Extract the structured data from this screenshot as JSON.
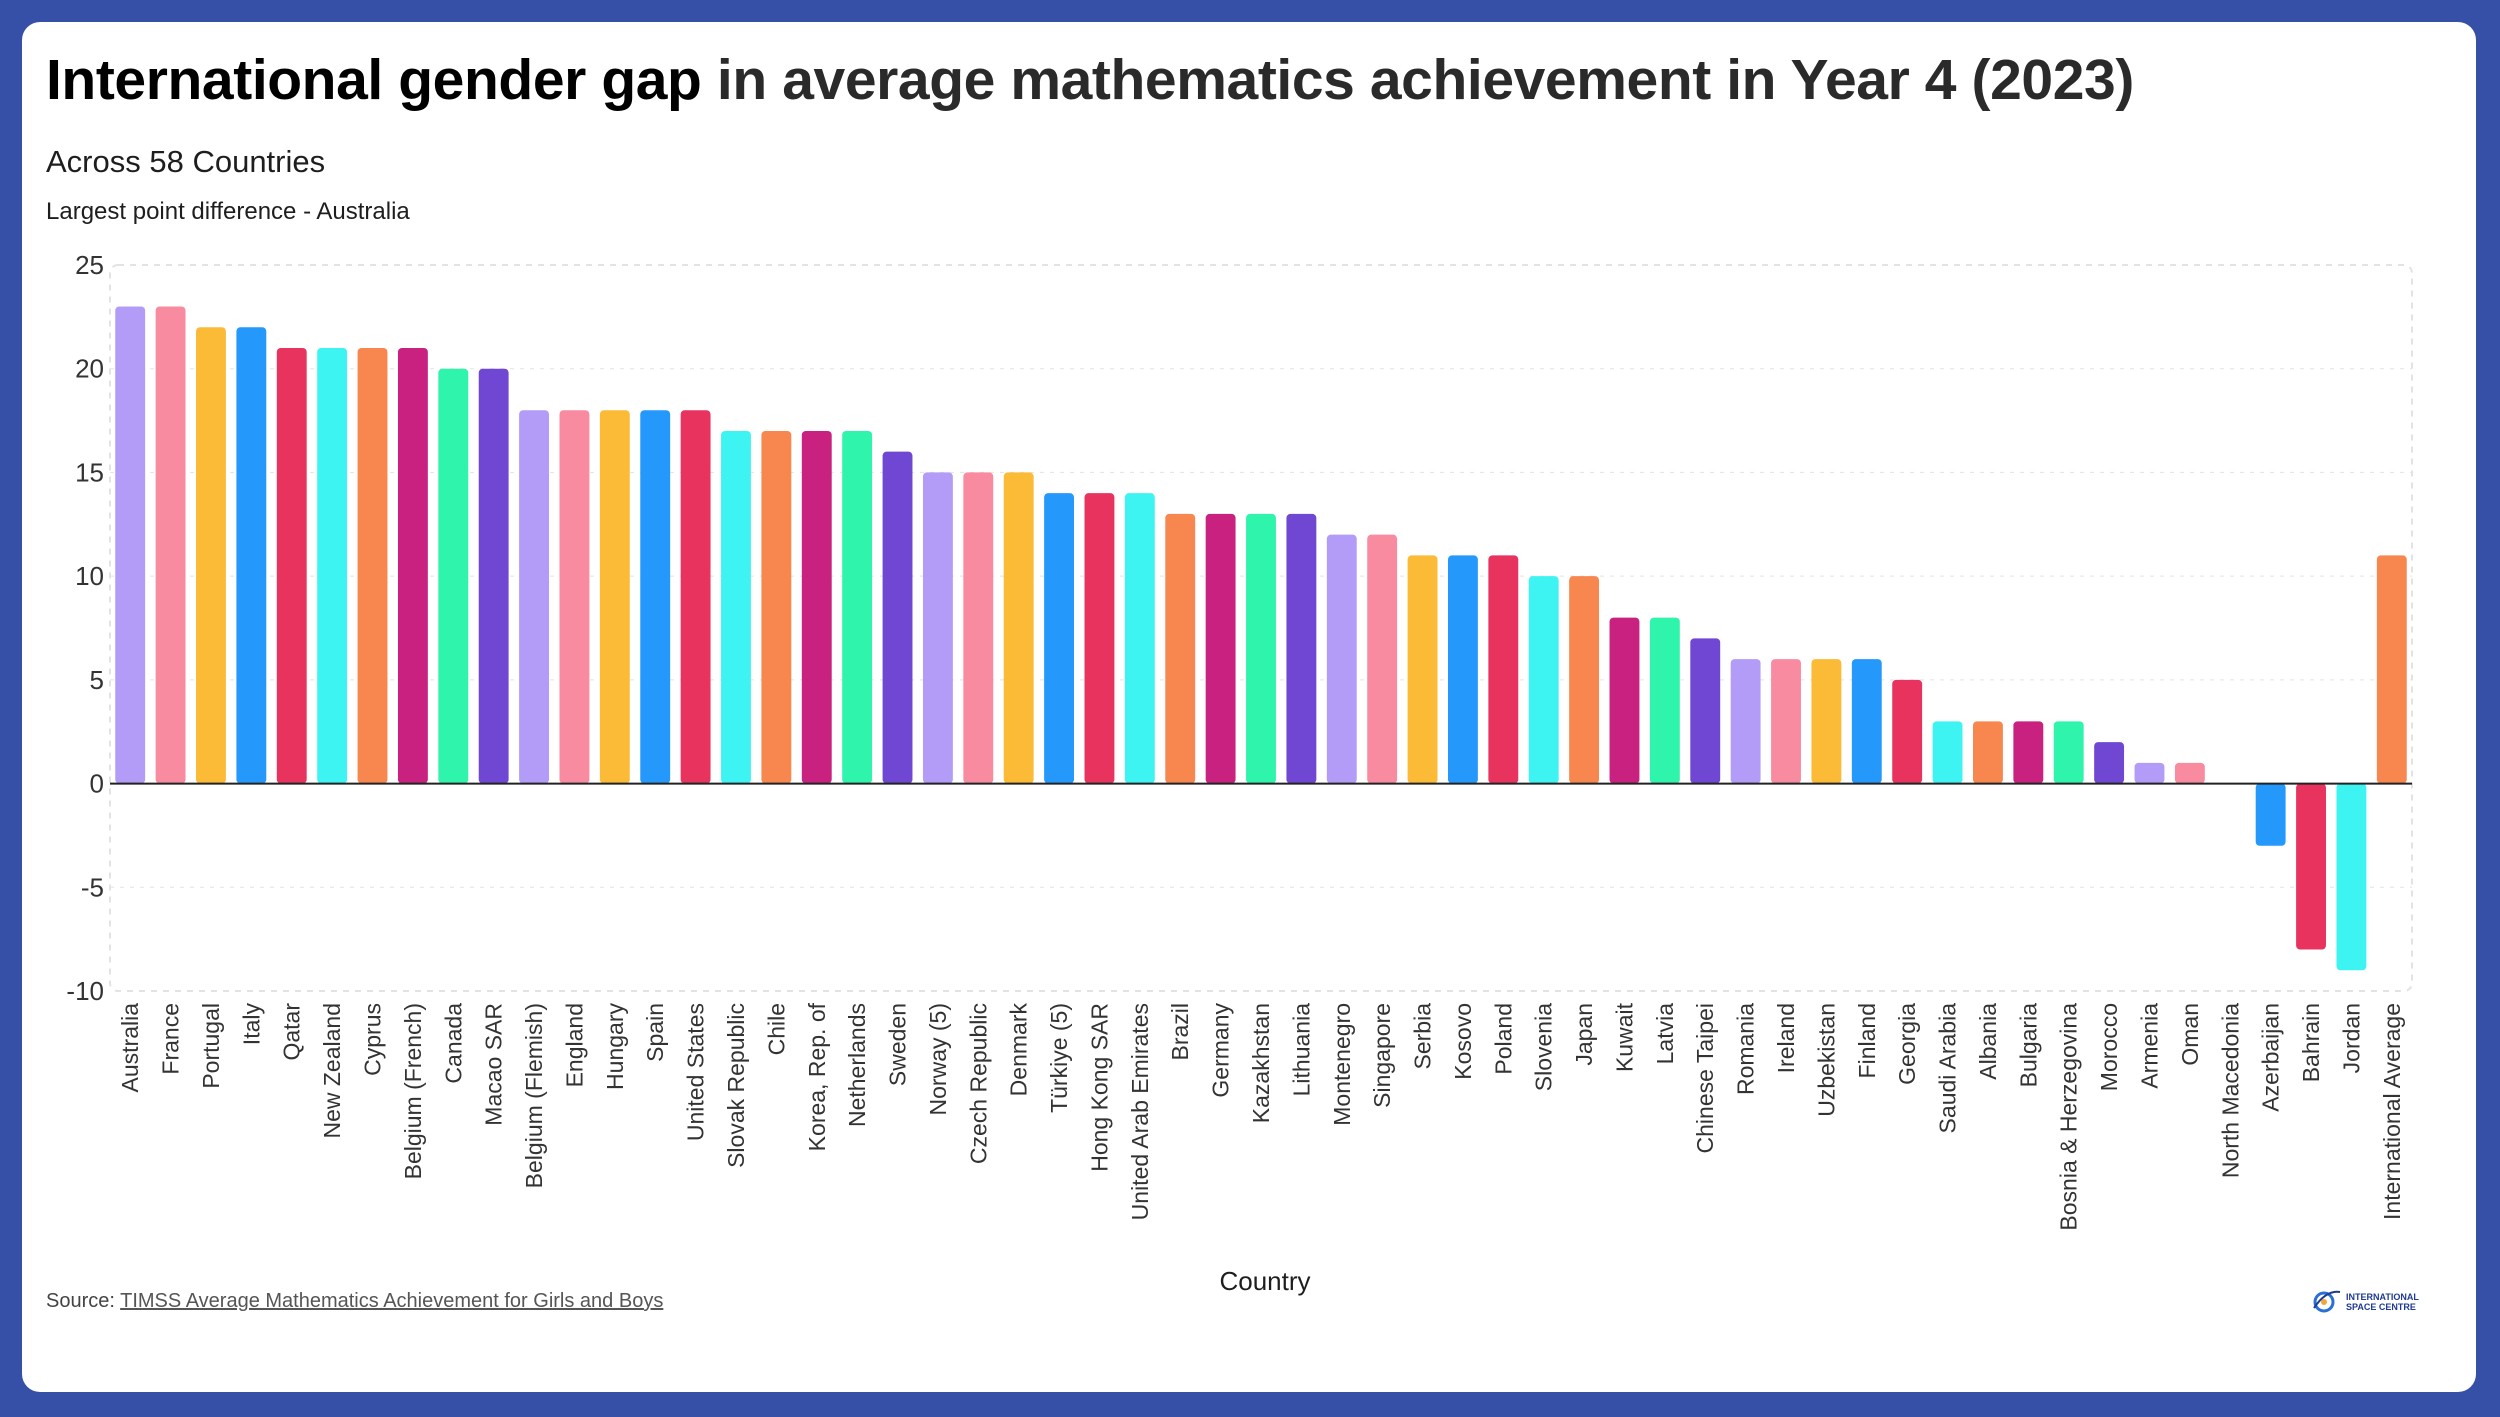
{
  "title_bold": "International gender gap",
  "title_rest": " in average mathematics achievement in Year 4 (2023)",
  "subtitle": "Across 58 Countries",
  "note": "Largest point difference - Australia",
  "source_prefix": "Source: ",
  "source_link_text": "TIMSS Average Mathematics Achievement for Girls and Boys",
  "logo_text_line1": "INTERNATIONAL",
  "logo_text_line2": "SPACE CENTRE",
  "colors": {
    "palette": [
      "#b39cf8",
      "#f98ba0",
      "#fbbb37",
      "#2599fb",
      "#e8335f",
      "#3ef4f2",
      "#f7874f",
      "#c8217f",
      "#2ff4ab",
      "#7047d2"
    ],
    "frame": "#3650a8",
    "axis": "#222222",
    "grid": "#e3e3e3"
  },
  "chart_data": {
    "type": "bar",
    "title": "International gender gap in average mathematics achievement in Year 4 (2023)",
    "xlabel": "Country",
    "ylabel": "",
    "ylim": [
      -10,
      25
    ],
    "yticks": [
      25,
      20,
      15,
      10,
      5,
      0,
      -5,
      -10
    ],
    "categories": [
      "Australia",
      "France",
      "Portugal",
      "Italy",
      "Qatar",
      "New Zealand",
      "Cyprus",
      "Belgium (French)",
      "Canada",
      "Macao SAR",
      "Belgium (Flemish)",
      "England",
      "Hungary",
      "Spain",
      "United States",
      "Slovak Republic",
      "Chile",
      "Korea, Rep. of",
      "Netherlands",
      "Sweden",
      "Norway (5)",
      "Czech Republic",
      "Denmark",
      "Türkiye (5)",
      "Hong Kong SAR",
      "United Arab Emirates",
      "Brazil",
      "Germany",
      "Kazakhstan",
      "Lithuania",
      "Montenegro",
      "Singapore",
      "Serbia",
      "Kosovo",
      "Poland",
      "Slovenia",
      "Japan",
      "Kuwait",
      "Latvia",
      "Chinese Taipei",
      "Romania",
      "Ireland",
      "Uzbekistan",
      "Finland",
      "Georgia",
      "Saudi Arabia",
      "Albania",
      "Bulgaria",
      "Bosnia & Herzegovina",
      "Morocco",
      "Armenia",
      "Oman",
      "North Macedonia",
      "Azerbaijan",
      "Bahrain",
      "Jordan",
      "International Average"
    ],
    "values": [
      23,
      23,
      22,
      22,
      21,
      21,
      21,
      21,
      20,
      20,
      18,
      18,
      18,
      18,
      18,
      17,
      17,
      17,
      17,
      16,
      15,
      15,
      15,
      14,
      14,
      14,
      13,
      13,
      13,
      13,
      12,
      12,
      11,
      11,
      11,
      10,
      10,
      8,
      8,
      7,
      6,
      6,
      6,
      6,
      5,
      3,
      3,
      3,
      3,
      2,
      1,
      1,
      0,
      -3,
      -8,
      -9,
      11
    ],
    "grid": true,
    "legend": "none"
  }
}
